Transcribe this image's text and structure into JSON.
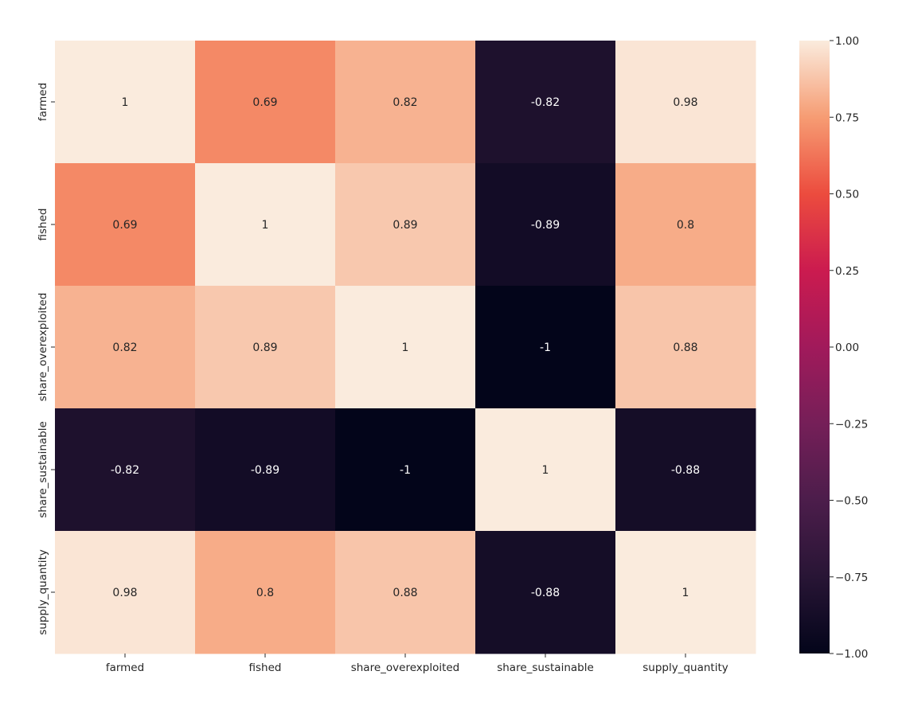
{
  "chart_data": {
    "type": "heatmap",
    "title": "",
    "xlabel": "",
    "ylabel": "",
    "x_categories": [
      "farmed",
      "fished",
      "share_overexploited",
      "share_sustainable",
      "supply_quantity"
    ],
    "y_categories": [
      "farmed",
      "fished",
      "share_overexploited",
      "share_sustainable",
      "supply_quantity"
    ],
    "values": [
      [
        1,
        0.69,
        0.82,
        -0.82,
        0.98
      ],
      [
        0.69,
        1,
        0.89,
        -0.89,
        0.8
      ],
      [
        0.82,
        0.89,
        1,
        -1,
        0.88
      ],
      [
        -0.82,
        -0.89,
        -1,
        1,
        -0.88
      ],
      [
        0.98,
        0.8,
        0.88,
        -0.88,
        1
      ]
    ],
    "annotations": [
      [
        "1",
        "0.69",
        "0.82",
        "-0.82",
        "0.98"
      ],
      [
        "0.69",
        "1",
        "0.89",
        "-0.89",
        "0.8"
      ],
      [
        "0.82",
        "0.89",
        "1",
        "-1",
        "0.88"
      ],
      [
        "-0.82",
        "-0.89",
        "-1",
        "1",
        "-0.88"
      ],
      [
        "0.98",
        "0.8",
        "0.88",
        "-0.88",
        "1"
      ]
    ],
    "value_range": [
      -1,
      1
    ],
    "colormap": "rocket",
    "colorbar": {
      "range": [
        -1,
        1
      ],
      "ticks": [
        1,
        0.75,
        0.5,
        0.25,
        0,
        -0.25,
        -0.5,
        -0.75,
        -1
      ],
      "tick_labels": [
        "1.00",
        "0.75",
        "0.50",
        "0.25",
        "0.00",
        "−0.25",
        "−0.50",
        "−0.75",
        "−1.00"
      ],
      "placement": "right"
    },
    "grid": false
  }
}
